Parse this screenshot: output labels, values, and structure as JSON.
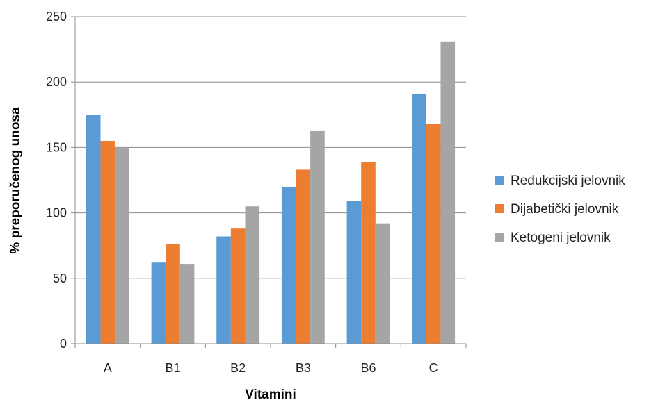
{
  "chart_data": {
    "type": "bar",
    "title": "",
    "xlabel": "Vitamini",
    "ylabel": "% preporučenog unosa",
    "categories": [
      "A",
      "B1",
      "B2",
      "B3",
      "B6",
      "C"
    ],
    "series": [
      {
        "name": "Redukcijski jelovnik",
        "color": "#5b9bd5",
        "values": [
          175,
          62,
          82,
          120,
          109,
          191
        ]
      },
      {
        "name": "Dijabetički jelovnik",
        "color": "#ed7d31",
        "values": [
          155,
          76,
          88,
          133,
          139,
          168
        ]
      },
      {
        "name": "Ketogeni jelovnik",
        "color": "#a5a5a5",
        "values": [
          150,
          61,
          105,
          163,
          92,
          231
        ]
      }
    ],
    "ylim": [
      0,
      250
    ],
    "yticks": [
      0,
      50,
      100,
      150,
      200,
      250
    ],
    "grid": true,
    "legend": "right"
  }
}
